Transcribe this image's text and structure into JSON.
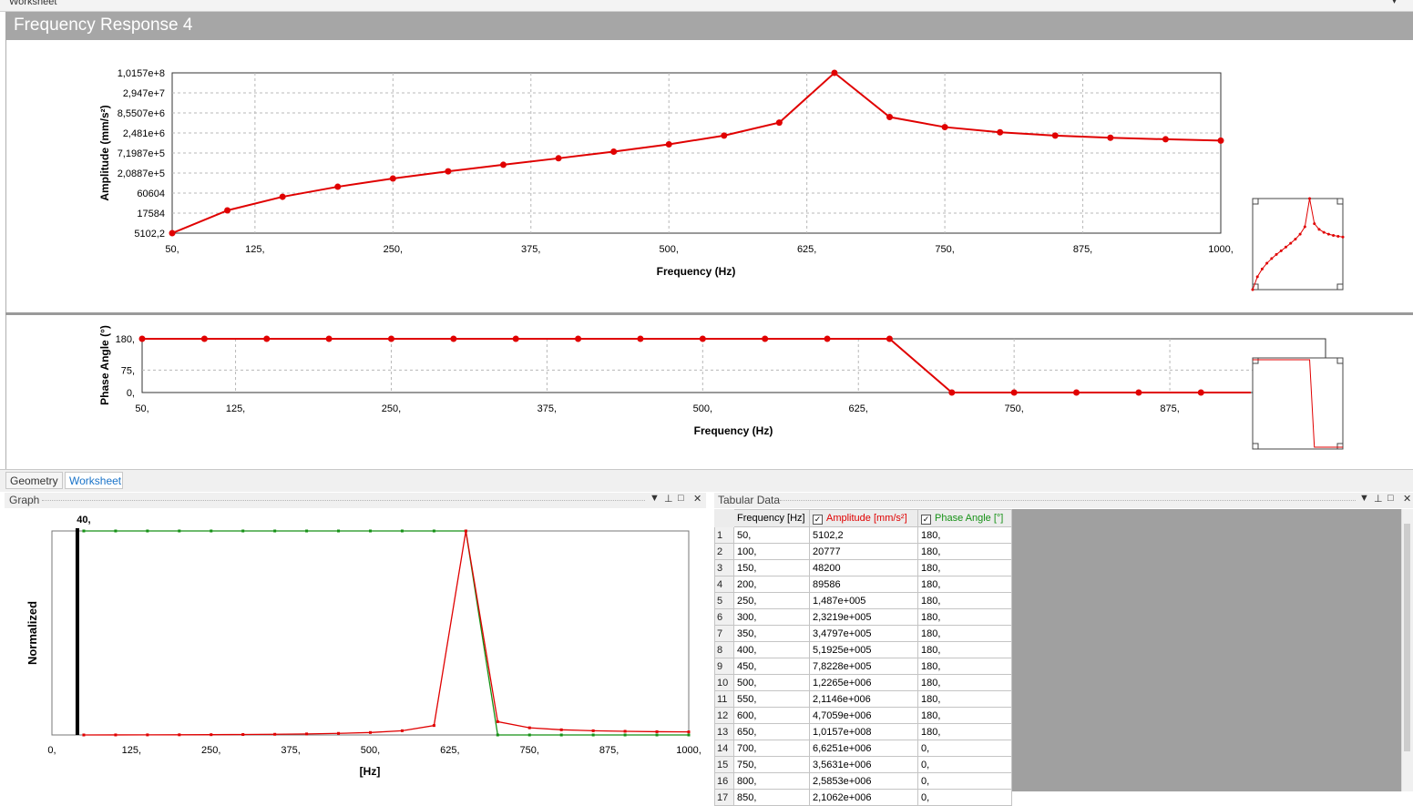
{
  "window": {
    "top_strip_title": "Worksheet",
    "title": "Frequency Response 4",
    "tabs": [
      {
        "label": "Geometry",
        "active": false
      },
      {
        "label": "Worksheet",
        "active": true
      }
    ],
    "graph_panel_title": "Graph",
    "tabular_panel_title": "Tabular Data"
  },
  "colors": {
    "amplitude": "#e00000",
    "phase": "#169116",
    "header_bg": "#a6a6a6",
    "active_tab": "#1a73c8"
  },
  "table": {
    "columns": [
      "Frequency [Hz]",
      "Amplitude [mm/s²]",
      "Phase Angle [°]"
    ],
    "rows": [
      [
        "1",
        "50,",
        "5102,2",
        "180,"
      ],
      [
        "2",
        "100,",
        "20777",
        "180,"
      ],
      [
        "3",
        "150,",
        "48200",
        "180,"
      ],
      [
        "4",
        "200,",
        "89586",
        "180,"
      ],
      [
        "5",
        "250,",
        "1,487e+005",
        "180,"
      ],
      [
        "6",
        "300,",
        "2,3219e+005",
        "180,"
      ],
      [
        "7",
        "350,",
        "3,4797e+005",
        "180,"
      ],
      [
        "8",
        "400,",
        "5,1925e+005",
        "180,"
      ],
      [
        "9",
        "450,",
        "7,8228e+005",
        "180,"
      ],
      [
        "10",
        "500,",
        "1,2265e+006",
        "180,"
      ],
      [
        "11",
        "550,",
        "2,1146e+006",
        "180,"
      ],
      [
        "12",
        "600,",
        "4,7059e+006",
        "180,"
      ],
      [
        "13",
        "650,",
        "1,0157e+008",
        "180,"
      ],
      [
        "14",
        "700,",
        "6,6251e+006",
        "0,"
      ],
      [
        "15",
        "750,",
        "3,5631e+006",
        "0,"
      ],
      [
        "16",
        "800,",
        "2,5853e+006",
        "0,"
      ],
      [
        "17",
        "850,",
        "2,1062e+006",
        "0,"
      ]
    ]
  },
  "chart_data": [
    {
      "type": "line",
      "name": "amplitude-chart",
      "x": [
        50,
        100,
        150,
        200,
        250,
        300,
        350,
        400,
        450,
        500,
        550,
        600,
        650,
        700,
        750,
        800,
        850,
        900,
        950,
        1000
      ],
      "series": [
        {
          "name": "Amplitude [mm/s²]",
          "values": [
            5102.2,
            20777,
            48200,
            89586,
            148700,
            232190,
            347970,
            519250,
            782280,
            1226500,
            2114600,
            4705900,
            101570000,
            6625100,
            3563100,
            2585300,
            2106200,
            1850000,
            1680000,
            1550000
          ]
        }
      ],
      "ylabel": "Amplitude (mm/s²)",
      "xlabel": "Frequency (Hz)",
      "xlim": [
        50,
        1000
      ],
      "y_scale": "log",
      "ytick_labels": [
        "1,0157e+8",
        "2,947e+7",
        "8,5507e+6",
        "2,481e+6",
        "7,1987e+5",
        "2,0887e+5",
        "60604",
        "17584",
        "5102,2"
      ],
      "xtick_values": [
        50,
        125,
        250,
        375,
        500,
        625,
        750,
        875,
        1000
      ],
      "xtick_labels": [
        "50,",
        "125,",
        "250,",
        "375,",
        "500,",
        "625,",
        "750,",
        "875,",
        "1000,"
      ],
      "grid": true
    },
    {
      "type": "line",
      "name": "phase-chart",
      "x": [
        50,
        100,
        150,
        200,
        250,
        300,
        350,
        400,
        450,
        500,
        550,
        600,
        650,
        700,
        750,
        800,
        850,
        900
      ],
      "series": [
        {
          "name": "Phase Angle [°]",
          "values": [
            180,
            180,
            180,
            180,
            180,
            180,
            180,
            180,
            180,
            180,
            180,
            180,
            180,
            0,
            0,
            0,
            0,
            0
          ]
        }
      ],
      "ylabel": "Phase Angle (°)",
      "xlabel": "Frequency (Hz)",
      "ylim": [
        0,
        180
      ],
      "xlim": [
        50,
        1000
      ],
      "ytick_values": [
        180,
        75,
        0
      ],
      "ytick_labels": [
        "180,",
        "75,",
        "0,"
      ],
      "xtick_values": [
        50,
        125,
        250,
        375,
        500,
        625,
        750,
        875
      ],
      "xtick_labels": [
        "50,",
        "125,",
        "250,",
        "375,",
        "500,",
        "625,",
        "750,",
        "875,"
      ],
      "grid": true
    },
    {
      "type": "line",
      "name": "normalized-graph",
      "x": [
        50,
        100,
        150,
        200,
        250,
        300,
        350,
        400,
        450,
        500,
        550,
        600,
        650,
        700,
        750,
        800,
        850,
        900,
        950,
        1000
      ],
      "series": [
        {
          "name": "Amplitude [mm/s²]",
          "values": [
            0.0,
            0.0002,
            0.0004,
            0.0008,
            0.0014,
            0.0022,
            0.0033,
            0.0051,
            0.0077,
            0.012,
            0.0208,
            0.0463,
            1.0,
            0.0652,
            0.0351,
            0.0254,
            0.0207,
            0.018,
            0.016,
            0.015
          ]
        },
        {
          "name": "Phase Angle [°]",
          "values": [
            1,
            1,
            1,
            1,
            1,
            1,
            1,
            1,
            1,
            1,
            1,
            1,
            1,
            0,
            0,
            0,
            0,
            0,
            0,
            0
          ]
        }
      ],
      "ylabel": "Normalized",
      "xlabel": "[Hz]",
      "xlim": [
        0,
        1000
      ],
      "marker_label": "40,",
      "marker_x": 40,
      "xtick_values": [
        0,
        125,
        250,
        375,
        500,
        625,
        750,
        875,
        1000
      ],
      "xtick_labels": [
        "0,",
        "125,",
        "250,",
        "375,",
        "500,",
        "625,",
        "750,",
        "875,",
        "1000,"
      ]
    }
  ]
}
